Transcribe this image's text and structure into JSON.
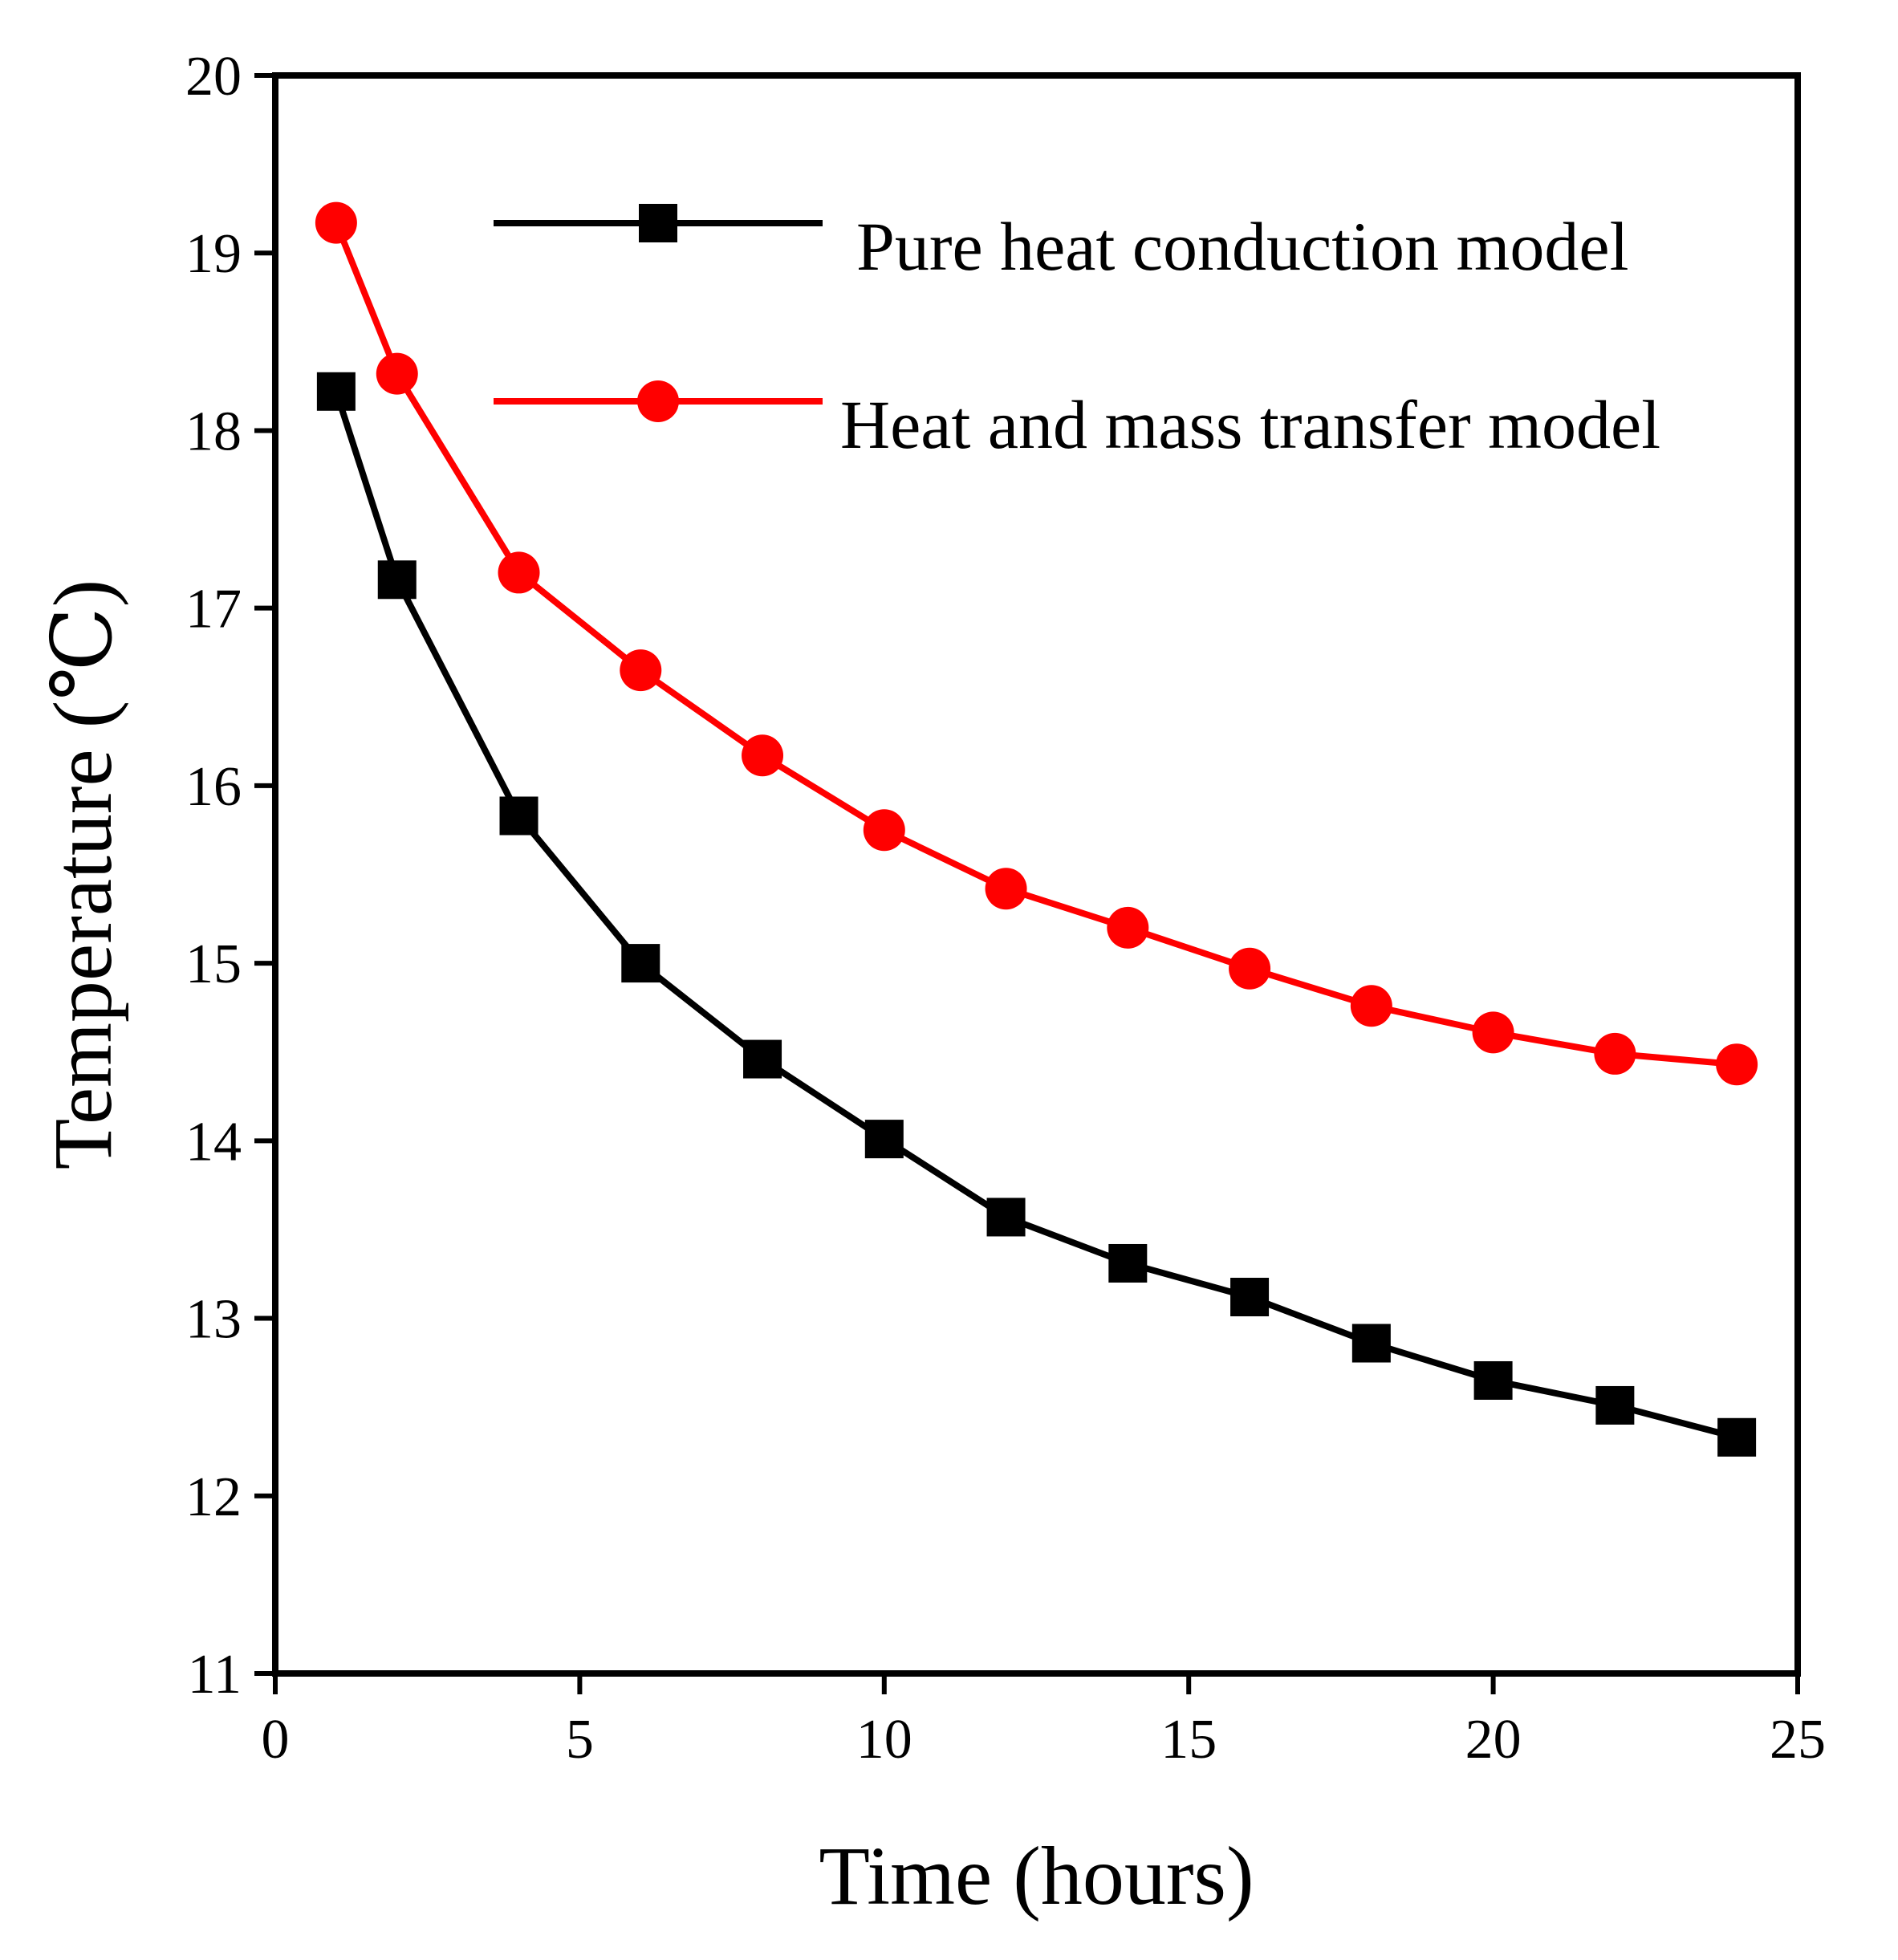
{
  "chart_data": {
    "type": "line",
    "xlabel": "Time (hours)",
    "ylabel": "Temperature (℃)",
    "xlim": [
      0,
      25
    ],
    "ylim": [
      11,
      20
    ],
    "xticks": [
      0,
      5,
      10,
      15,
      20,
      25
    ],
    "yticks": [
      11,
      12,
      13,
      14,
      15,
      16,
      17,
      18,
      19,
      20
    ],
    "grid": false,
    "legend_position": "top-right",
    "x": [
      1,
      2,
      4,
      6,
      8,
      10,
      12,
      14,
      16,
      18,
      20,
      22,
      24
    ],
    "series": [
      {
        "name": "Pure heat conduction model",
        "color": "#000000",
        "marker": "square",
        "values": [
          18.22,
          17.16,
          15.83,
          15.0,
          14.46,
          14.01,
          13.57,
          13.31,
          13.12,
          12.86,
          12.65,
          12.51,
          12.33
        ]
      },
      {
        "name": "Heat and mass transfer model",
        "color": "#ff0000",
        "marker": "circle",
        "values": [
          19.17,
          18.32,
          17.2,
          16.65,
          16.17,
          15.75,
          15.42,
          15.2,
          14.97,
          14.76,
          14.61,
          14.49,
          14.43
        ]
      }
    ]
  }
}
